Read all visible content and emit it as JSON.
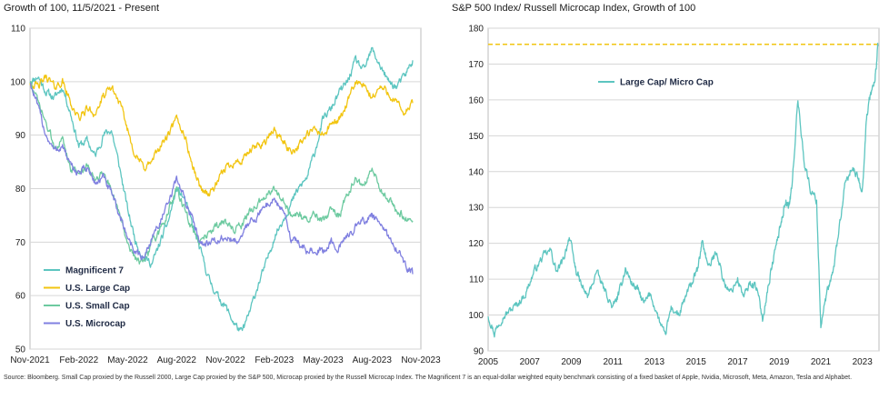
{
  "footnote": "Source: Bloomberg. Small Cap proxied by the Russell 2000, Large Cap proxied by the S&P 500, Microcap proxied by the Russell Microcap Index. The Magnificent 7 is an equal-dollar weighted equity benchmark consisting of a fixed basket of Apple, Nvidia, Microsoft, Meta, Amazon, Tesla and Alphabet.",
  "chart_data": [
    {
      "type": "line",
      "title": "Growth of 100, 11/5/2021 - Present",
      "xlabel": "",
      "ylabel": "",
      "ylim": [
        50,
        110
      ],
      "yticks": [
        50,
        60,
        70,
        80,
        90,
        100,
        110
      ],
      "xlim": [
        0,
        24
      ],
      "xticks": [
        {
          "x": 0,
          "label": "Nov-2021"
        },
        {
          "x": 3,
          "label": "Feb-2022"
        },
        {
          "x": 6,
          "label": "May-2022"
        },
        {
          "x": 9,
          "label": "Aug-2022"
        },
        {
          "x": 12,
          "label": "Nov-2022"
        },
        {
          "x": 15,
          "label": "Feb-2023"
        },
        {
          "x": 18,
          "label": "May-2023"
        },
        {
          "x": 21,
          "label": "Aug-2023"
        },
        {
          "x": 24,
          "label": "Nov-2023"
        }
      ],
      "grid": "horizontal",
      "legend_position": "bottom-left",
      "series": [
        {
          "name": "Magnificent 7",
          "color": "#5cc5c0",
          "x": [
            0,
            0.5,
            1,
            1.5,
            2,
            2.5,
            3,
            3.5,
            4,
            4.5,
            5,
            5.5,
            6,
            6.5,
            7,
            7.5,
            8,
            8.5,
            9,
            9.5,
            10,
            10.5,
            11,
            11.5,
            12,
            12.5,
            13,
            13.5,
            14,
            14.5,
            15,
            15.5,
            16,
            16.5,
            17,
            17.5,
            18,
            18.5,
            19,
            19.5,
            20,
            20.5,
            21,
            21.5,
            22,
            22.5,
            23,
            23.5
          ],
          "y": [
            100,
            101,
            98,
            97,
            99,
            94,
            88,
            89,
            86,
            90,
            91,
            84,
            76,
            70,
            67,
            66,
            70,
            74,
            80,
            78,
            73,
            68,
            63,
            60,
            58,
            55,
            53,
            57,
            62,
            66,
            71,
            74,
            77,
            80,
            82,
            87,
            93,
            95,
            98,
            100,
            104,
            102,
            106,
            103,
            100,
            99,
            101,
            104
          ]
        },
        {
          "name": "U.S. Large Cap",
          "color": "#f2c511",
          "x": [
            0,
            0.5,
            1,
            1.5,
            2,
            2.5,
            3,
            3.5,
            4,
            4.5,
            5,
            5.5,
            6,
            6.5,
            7,
            7.5,
            8,
            8.5,
            9,
            9.5,
            10,
            10.5,
            11,
            11.5,
            12,
            12.5,
            13,
            13.5,
            14,
            14.5,
            15,
            15.5,
            16,
            16.5,
            17,
            17.5,
            18,
            18.5,
            19,
            19.5,
            20,
            20.5,
            21,
            21.5,
            22,
            22.5,
            23,
            23.5
          ],
          "y": [
            100,
            99,
            101,
            99,
            100,
            96,
            93,
            95,
            94,
            97,
            99,
            96,
            91,
            86,
            84,
            85,
            88,
            90,
            93,
            90,
            84,
            80,
            79,
            81,
            84,
            85,
            85,
            87,
            88,
            89,
            91,
            89,
            87,
            88,
            90,
            91,
            90,
            92,
            93,
            96,
            100,
            99,
            97,
            99,
            98,
            96,
            94,
            96
          ]
        },
        {
          "name": "U.S. Small Cap",
          "color": "#6dcaa0",
          "x": [
            0,
            0.5,
            1,
            1.5,
            2,
            2.5,
            3,
            3.5,
            4,
            4.5,
            5,
            5.5,
            6,
            6.5,
            7,
            7.5,
            8,
            8.5,
            9,
            9.5,
            10,
            10.5,
            11,
            11.5,
            12,
            12.5,
            13,
            13.5,
            14,
            14.5,
            15,
            15.5,
            16,
            16.5,
            17,
            17.5,
            18,
            18.5,
            19,
            19.5,
            20,
            20.5,
            21,
            21.5,
            22,
            22.5,
            23,
            23.5
          ],
          "y": [
            100,
            96,
            92,
            88,
            89,
            84,
            83,
            84,
            82,
            83,
            80,
            75,
            70,
            67,
            66,
            70,
            72,
            76,
            80,
            76,
            72,
            70,
            72,
            73,
            74,
            72,
            73,
            76,
            77,
            79,
            80,
            78,
            75,
            75,
            74,
            75,
            74,
            76,
            75,
            79,
            82,
            80,
            84,
            80,
            78,
            76,
            75,
            74
          ]
        },
        {
          "name": "U.S. Microcap",
          "color": "#8080e0",
          "x": [
            0,
            0.5,
            1,
            1.5,
            2,
            2.5,
            3,
            3.5,
            4,
            4.5,
            5,
            5.5,
            6,
            6.5,
            7,
            7.5,
            8,
            8.5,
            9,
            9.5,
            10,
            10.5,
            11,
            11.5,
            12,
            12.5,
            13,
            13.5,
            14,
            14.5,
            15,
            15.5,
            16,
            16.5,
            17,
            17.5,
            18,
            18.5,
            19,
            19.5,
            20,
            20.5,
            21,
            21.5,
            22,
            22.5,
            23,
            23.5
          ],
          "y": [
            100,
            95,
            90,
            87,
            88,
            84,
            83,
            84,
            81,
            82,
            79,
            75,
            71,
            68,
            67,
            71,
            74,
            77,
            82,
            78,
            74,
            70,
            70,
            70,
            71,
            70,
            71,
            74,
            75,
            77,
            78,
            76,
            71,
            70,
            68,
            69,
            68,
            70,
            69,
            71,
            73,
            74,
            75,
            73,
            71,
            69,
            66,
            64
          ]
        }
      ]
    },
    {
      "type": "line",
      "title": "S&P 500 Index/ Russell Microcap Index, Growth of 100",
      "xlabel": "",
      "ylabel": "",
      "ylim": [
        90,
        180
      ],
      "yticks": [
        90,
        100,
        110,
        120,
        130,
        140,
        150,
        160,
        170,
        180
      ],
      "xlim": [
        2005,
        2023.8
      ],
      "xticks": [
        2005,
        2007,
        2009,
        2011,
        2013,
        2015,
        2017,
        2019,
        2021,
        2023
      ],
      "grid": "horizontal",
      "legend_position": "top-left",
      "reference_line": {
        "y": 175.5,
        "color": "#f2c511",
        "style": "dashed"
      },
      "series": [
        {
          "name": "Large Cap/ Micro Cap",
          "color": "#5cc5c0",
          "x": [
            2005,
            2005.3,
            2005.6,
            2006,
            2006.4,
            2006.8,
            2007.2,
            2007.6,
            2008,
            2008.3,
            2008.6,
            2008.9,
            2009.2,
            2009.5,
            2009.8,
            2010.2,
            2010.6,
            2011,
            2011.3,
            2011.6,
            2011.9,
            2012.2,
            2012.5,
            2012.8,
            2013.2,
            2013.5,
            2013.8,
            2014.2,
            2014.5,
            2014.8,
            2015.1,
            2015.3,
            2015.6,
            2016,
            2016.3,
            2016.6,
            2017,
            2017.3,
            2017.6,
            2017.9,
            2018.2,
            2018.5,
            2018.8,
            2019.1,
            2019.3,
            2019.45,
            2019.6,
            2019.9,
            2020.2,
            2020.5,
            2020.8,
            2021,
            2021.3,
            2021.6,
            2021.9,
            2022.2,
            2022.5,
            2022.8,
            2023,
            2023.2,
            2023.4,
            2023.6,
            2023.75
          ],
          "y": [
            100,
            95,
            99,
            101,
            103,
            106,
            112,
            116,
            118,
            112,
            115,
            122,
            113,
            108,
            105,
            112,
            107,
            102,
            106,
            113,
            109,
            107,
            103,
            106,
            99,
            94,
            102,
            100,
            105,
            109,
            113,
            121,
            113,
            118,
            110,
            106,
            110,
            105,
            109,
            108,
            99,
            109,
            118,
            126,
            132,
            130,
            135,
            160,
            143,
            135,
            132,
            97,
            106,
            112,
            125,
            137,
            141,
            138,
            135,
            155,
            162,
            165,
            175
          ]
        }
      ]
    }
  ]
}
